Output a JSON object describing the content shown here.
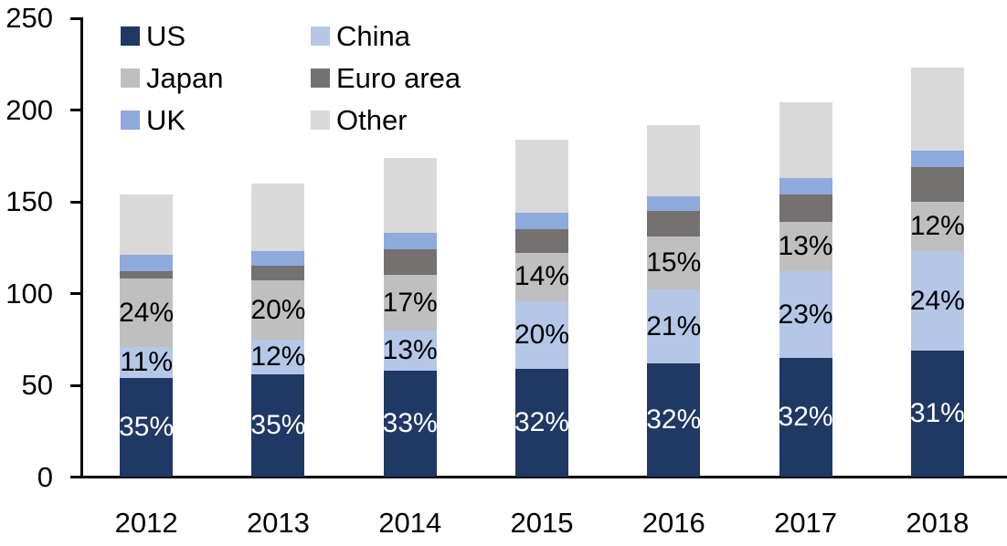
{
  "chart_data": {
    "type": "bar",
    "variant": "stacked-column",
    "title": "",
    "xlabel": "",
    "ylabel": "",
    "categories": [
      "2012",
      "2013",
      "2014",
      "2015",
      "2016",
      "2017",
      "2018"
    ],
    "series": [
      {
        "name": "US",
        "color": "#1f3864",
        "values": [
          54,
          56,
          58,
          59,
          62,
          65,
          69
        ],
        "segment_labels": [
          "35%",
          "35%",
          "33%",
          "32%",
          "32%",
          "32%",
          "31%"
        ],
        "label_color": "#ffffff"
      },
      {
        "name": "China",
        "color": "#b4c7e7",
        "values": [
          17,
          19,
          22,
          37,
          40,
          47,
          54
        ],
        "segment_labels": [
          "11%",
          "12%",
          "13%",
          "20%",
          "21%",
          "23%",
          "24%"
        ],
        "label_color": "#000000"
      },
      {
        "name": "Japan",
        "color": "#bfbfbf",
        "values": [
          37,
          32,
          30,
          26,
          29,
          27,
          27
        ],
        "segment_labels": [
          "24%",
          "20%",
          "17%",
          "14%",
          "15%",
          "13%",
          "12%"
        ],
        "label_color": "#000000"
      },
      {
        "name": "Euro area",
        "color": "#767171",
        "values": [
          4,
          8,
          14,
          13,
          14,
          15,
          19
        ]
      },
      {
        "name": "UK",
        "color": "#8faadc",
        "values": [
          9,
          8,
          9,
          9,
          8,
          9,
          9
        ]
      },
      {
        "name": "Other",
        "color": "#d9d9d9",
        "values": [
          33,
          37,
          41,
          40,
          39,
          41,
          45
        ]
      }
    ],
    "ylim": [
      0,
      250
    ],
    "y_ticks": [
      0,
      50,
      100,
      150,
      200,
      250
    ],
    "grid": "off",
    "axis_color": "#000000",
    "legend": {
      "position": "top-left",
      "columns": 2,
      "items": [
        "US",
        "China",
        "Japan",
        "Euro area",
        "UK",
        "Other"
      ]
    }
  }
}
